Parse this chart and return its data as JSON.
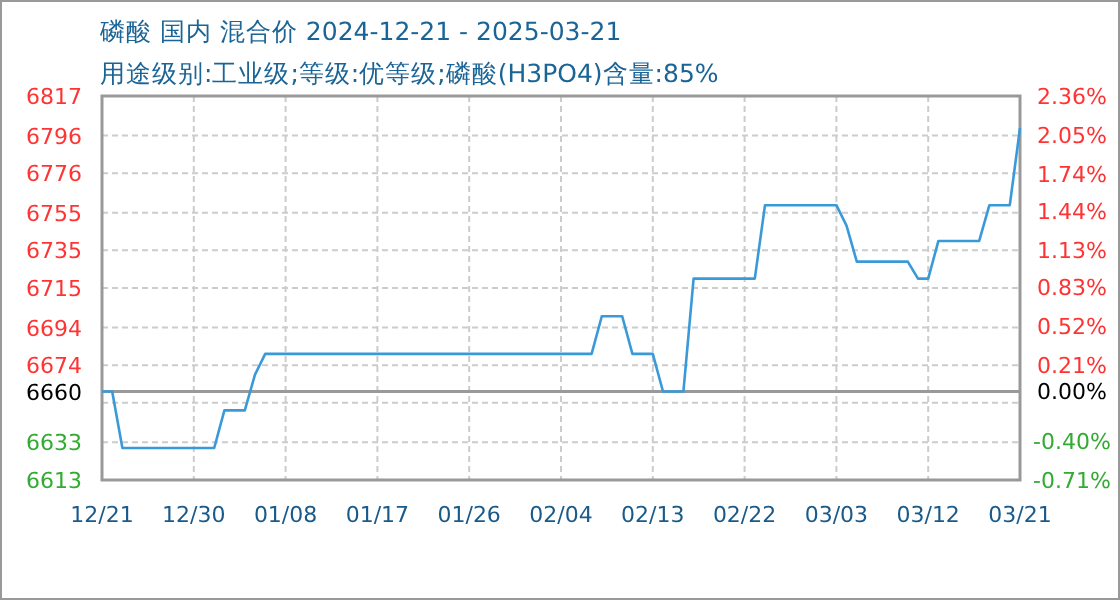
{
  "chart_data": {
    "type": "line",
    "title": "磷酸 国内 混合价 2024-12-21 - 2025-03-21",
    "subtitle": "用途级别:工业级;等级:优等级;磷酸(H3PO4)含量:85%",
    "x": [
      "2024-12-21",
      "2024-12-22",
      "2024-12-23",
      "2025-01-01",
      "2025-01-02",
      "2025-01-04",
      "2025-01-05",
      "2025-01-06",
      "2025-02-07",
      "2025-02-08",
      "2025-02-10",
      "2025-02-11",
      "2025-02-13",
      "2025-02-14",
      "2025-02-16",
      "2025-02-17",
      "2025-02-23",
      "2025-02-24",
      "2025-03-03",
      "2025-03-04",
      "2025-03-05",
      "2025-03-10",
      "2025-03-11",
      "2025-03-12",
      "2025-03-13",
      "2025-03-17",
      "2025-03-18",
      "2025-03-20",
      "2025-03-21"
    ],
    "series": [
      {
        "color": "#3a9ad9",
        "values": [
          6660,
          6660,
          6630,
          6630,
          6650,
          6650,
          6669,
          6680,
          6680,
          6700,
          6700,
          6680,
          6680,
          6660,
          6660,
          6720,
          6720,
          6759,
          6759,
          6748,
          6729,
          6729,
          6720,
          6720,
          6740,
          6740,
          6759,
          6759,
          6800
        ]
      }
    ],
    "xlim": [
      "2024-12-21",
      "2025-03-21"
    ],
    "xticks": [
      {
        "value": "2024-12-21",
        "label": "12/21"
      },
      {
        "value": "2024-12-30",
        "label": "12/30"
      },
      {
        "value": "2025-01-08",
        "label": "01/08"
      },
      {
        "value": "2025-01-17",
        "label": "01/17"
      },
      {
        "value": "2025-01-26",
        "label": "01/26"
      },
      {
        "value": "2025-02-04",
        "label": "02/04"
      },
      {
        "value": "2025-02-13",
        "label": "02/13"
      },
      {
        "value": "2025-02-22",
        "label": "02/22"
      },
      {
        "value": "2025-03-03",
        "label": "03/03"
      },
      {
        "value": "2025-03-12",
        "label": "03/12"
      },
      {
        "value": "2025-03-21",
        "label": "03/21"
      }
    ],
    "ylim": [
      6613,
      6817
    ],
    "yticks": [
      6613,
      6633,
      {
        "value": 6654,
        "label": null
      },
      6660,
      6674,
      6694,
      6715,
      6735,
      6755,
      6776,
      6796,
      6817
    ],
    "y2lim": [
      -0.71,
      2.36
    ],
    "y2ticks": [
      {
        "value": -0.71,
        "label": "-0.71%"
      },
      {
        "value": -0.4,
        "label": "-0.40%"
      },
      {
        "value": -0.1,
        "label": null
      },
      {
        "value": 0,
        "label": "0.00%"
      },
      {
        "value": 0.21,
        "label": "0.21%"
      },
      {
        "value": 0.52,
        "label": "0.52%"
      },
      {
        "value": 0.83,
        "label": "0.83%"
      },
      {
        "value": 1.13,
        "label": "1.13%"
      },
      {
        "value": 1.44,
        "label": "1.44%"
      },
      {
        "value": 1.74,
        "label": "1.74%"
      },
      {
        "value": 2.05,
        "label": "2.05%"
      },
      {
        "value": 2.36,
        "label": "2.36%"
      }
    ],
    "ref_lines": [
      {
        "axis": "y",
        "value": 6660,
        "color": "#999999"
      }
    ],
    "grid": true
  }
}
